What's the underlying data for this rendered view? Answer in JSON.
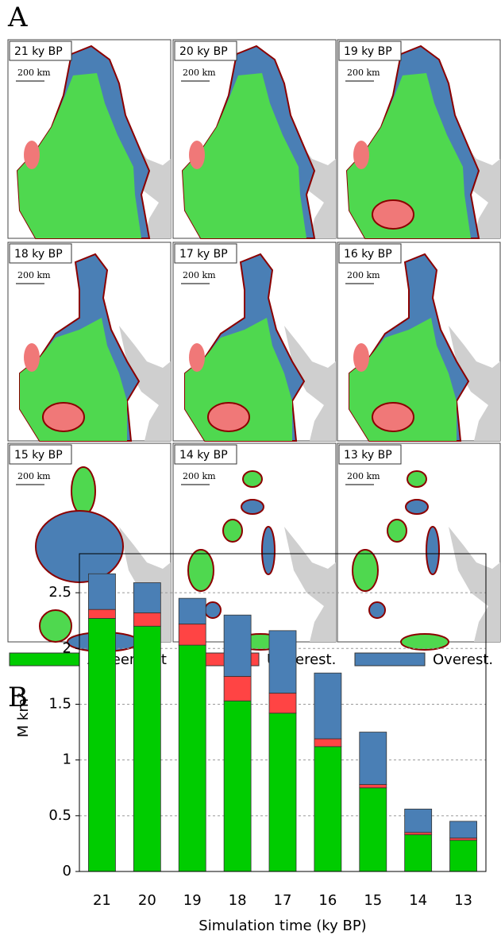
{
  "panels": {
    "a": "A",
    "b": "B"
  },
  "maps": [
    {
      "title": "21 ky BP",
      "scale": "200 km"
    },
    {
      "title": "20 ky BP",
      "scale": "200 km"
    },
    {
      "title": "19 ky BP",
      "scale": "200 km"
    },
    {
      "title": "18 ky BP",
      "scale": "200 km"
    },
    {
      "title": "17 ky BP",
      "scale": "200 km"
    },
    {
      "title": "16 ky BP",
      "scale": "200 km"
    },
    {
      "title": "15 ky BP",
      "scale": "200 km"
    },
    {
      "title": "14 ky BP",
      "scale": "200 km"
    },
    {
      "title": "13 ky BP",
      "scale": "200 km"
    }
  ],
  "chart_data": {
    "type": "stacked_bar",
    "x_label": "Simulation time (ky BP)",
    "y_label": "M km²",
    "categories": [
      "21",
      "20",
      "19",
      "18",
      "17",
      "16",
      "15",
      "14",
      "13"
    ],
    "series": [
      {
        "name": "Agreement",
        "color": "#00cc00",
        "values": [
          2.27,
          2.2,
          2.03,
          1.53,
          1.42,
          1.12,
          0.75,
          0.33,
          0.28
        ]
      },
      {
        "name": "Underest.",
        "color": "#ff4444",
        "values": [
          0.08,
          0.12,
          0.19,
          0.22,
          0.18,
          0.07,
          0.03,
          0.02,
          0.02
        ]
      },
      {
        "name": "Overest.",
        "color": "#4a7fb5",
        "values": [
          0.32,
          0.27,
          0.23,
          0.55,
          0.56,
          0.59,
          0.47,
          0.21,
          0.15
        ]
      }
    ],
    "ylim": [
      0,
      2.85
    ],
    "yticks": [
      0,
      0.5,
      1,
      1.5,
      2,
      2.5
    ],
    "grid": true
  }
}
